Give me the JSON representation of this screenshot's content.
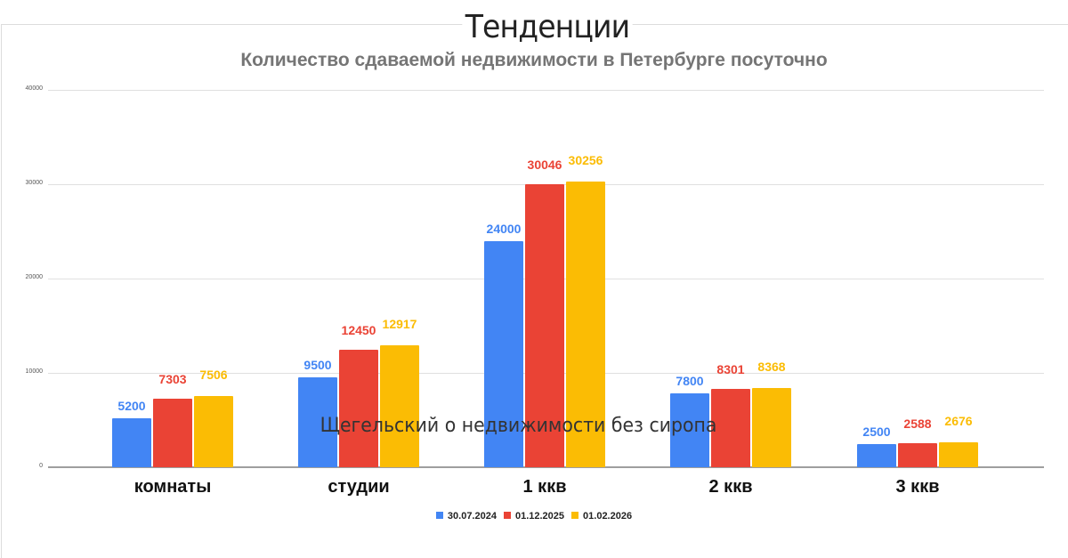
{
  "header": {
    "title": "Тенденции",
    "subtitle": "Количество сдаваемой недвижимости в Петербурге посуточно"
  },
  "watermark": "Щегельский о недвижимости без сиропа",
  "colors": {
    "series_1": "#4285f4",
    "series_2": "#ea4335",
    "series_3": "#fbbc04"
  },
  "chart_data": {
    "type": "bar",
    "title": "Количество сдаваемой недвижимости в Петербурге посуточно",
    "xlabel": "",
    "ylabel": "",
    "ylim": [
      0,
      40000
    ],
    "yticks": [
      "0",
      "10000",
      "20000",
      "30000",
      "40000"
    ],
    "grid": true,
    "legend_position": "bottom",
    "categories": [
      "комнаты",
      "студии",
      "1 ккв",
      "2 ккв",
      "3 ккв"
    ],
    "series": [
      {
        "name": "30.07.2024",
        "color": "#4285f4",
        "values": [
          5200,
          9500,
          24000,
          7800,
          2500
        ]
      },
      {
        "name": "01.12.2025",
        "color": "#ea4335",
        "values": [
          7303,
          12450,
          30046,
          8301,
          2588
        ]
      },
      {
        "name": "01.02.2026",
        "color": "#fbbc04",
        "values": [
          7506,
          12917,
          30256,
          8368,
          2676
        ]
      }
    ]
  }
}
